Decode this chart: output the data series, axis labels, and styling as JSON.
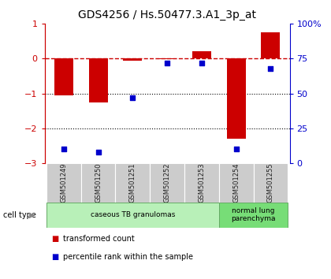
{
  "title": "GDS4256 / Hs.50477.3.A1_3p_at",
  "samples": [
    "GSM501249",
    "GSM501250",
    "GSM501251",
    "GSM501252",
    "GSM501253",
    "GSM501254",
    "GSM501255"
  ],
  "transformed_count": [
    -1.05,
    -1.25,
    -0.05,
    -0.02,
    0.2,
    -2.3,
    0.75
  ],
  "percentile_rank": [
    10,
    8,
    47,
    72,
    72,
    10,
    68
  ],
  "bar_color": "#cc0000",
  "dot_color": "#0000cc",
  "ylim_left": [
    -3,
    1
  ],
  "yticks_left": [
    -3,
    -2,
    -1,
    0,
    1
  ],
  "yticks_right_vals": [
    0,
    25,
    50,
    75,
    100
  ],
  "yticks_right_labels": [
    "0",
    "25",
    "50",
    "75",
    "100%"
  ],
  "hline_y": 0,
  "dotted_lines": [
    -1,
    -2
  ],
  "cell_type_groups": [
    {
      "label": "caseous TB granulomas",
      "samples": [
        "GSM501249",
        "GSM501250",
        "GSM501251",
        "GSM501252",
        "GSM501253"
      ],
      "color": "#b8f0b8"
    },
    {
      "label": "normal lung\nparenchyma",
      "samples": [
        "GSM501254",
        "GSM501255"
      ],
      "color": "#77dd77"
    }
  ],
  "legend_items": [
    {
      "label": "transformed count",
      "color": "#cc0000"
    },
    {
      "label": "percentile rank within the sample",
      "color": "#0000cc"
    }
  ],
  "cell_type_label": "cell type",
  "sample_box_color": "#cccccc",
  "background_color": "#ffffff"
}
